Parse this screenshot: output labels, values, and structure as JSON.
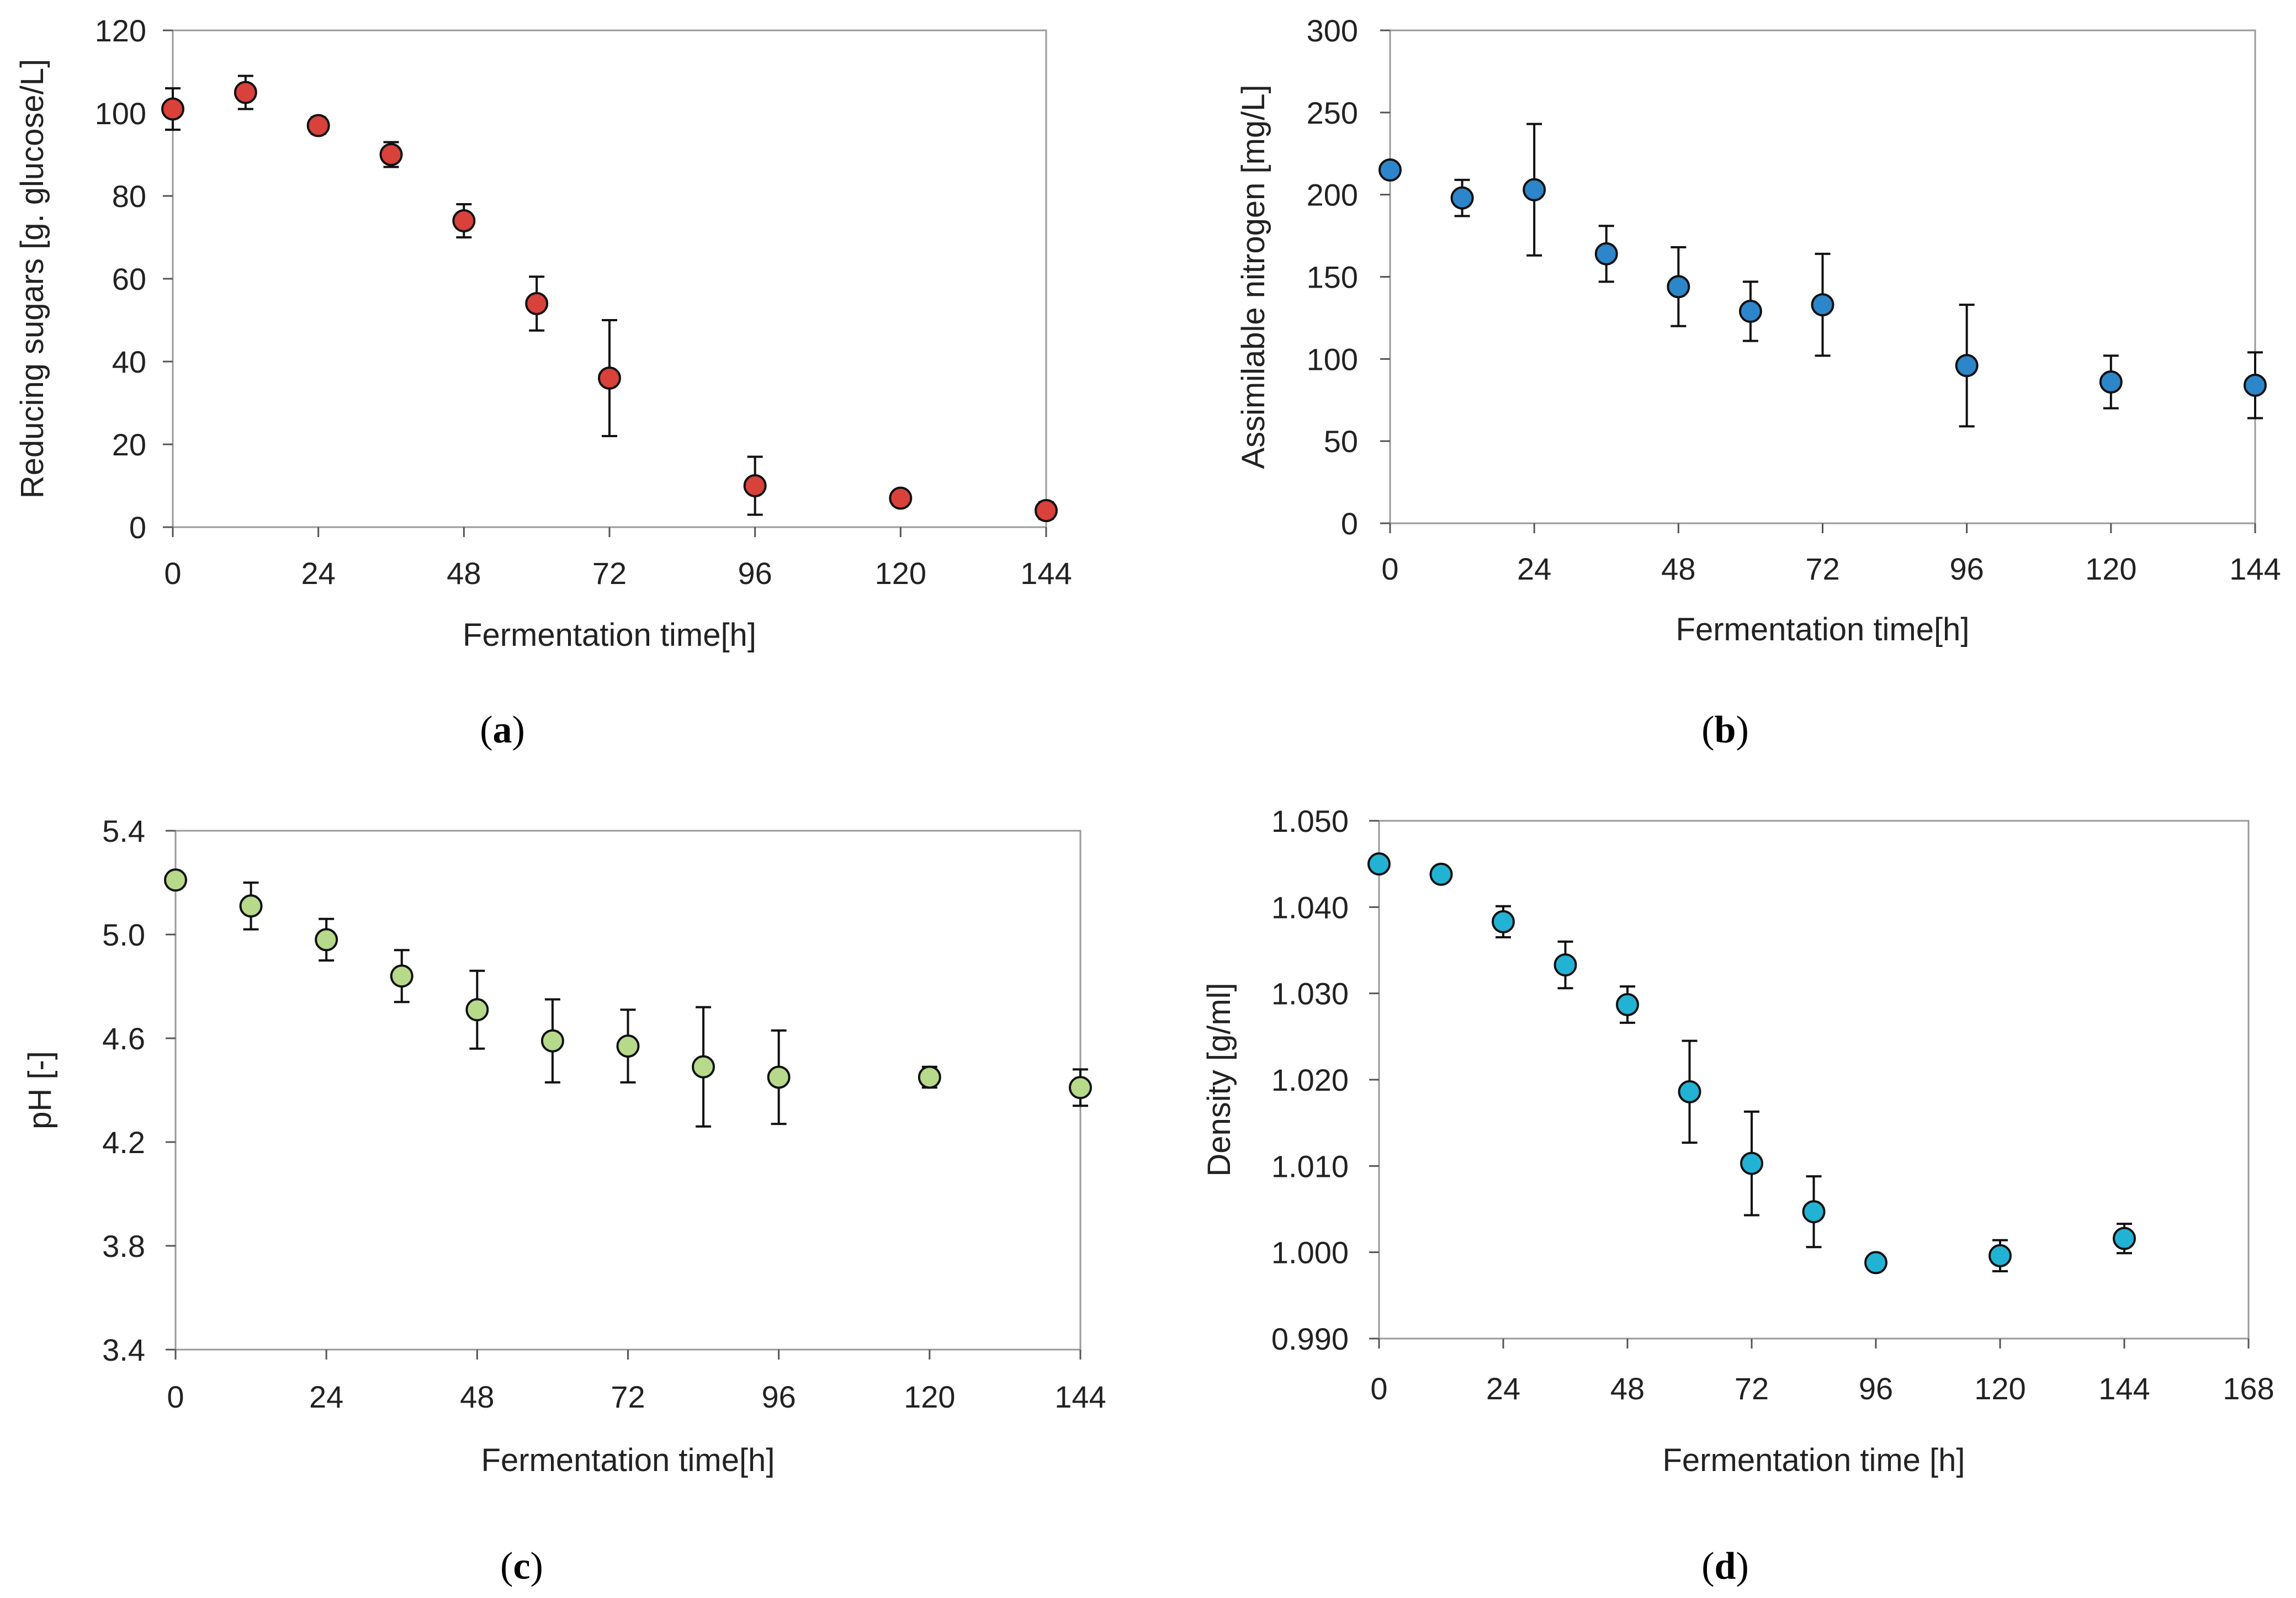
{
  "chart_data": [
    {
      "type": "scatter",
      "caption": "a",
      "xlabel": "Fermentation time[h]",
      "ylabel": "Reducing sugars [g. glucose/L]",
      "xlim": [
        0,
        144
      ],
      "ylim": [
        0,
        120
      ],
      "xticks": [
        "0",
        "24",
        "48",
        "72",
        "96",
        "120",
        "144"
      ],
      "yticks": [
        "0",
        "20",
        "40",
        "60",
        "80",
        "100",
        "120"
      ],
      "grid": false,
      "marker_color": "#d9413b",
      "series": [
        {
          "points": [
            {
              "x": 0,
              "y": 101,
              "err": 5
            },
            {
              "x": 12,
              "y": 105,
              "err": 4
            },
            {
              "x": 24,
              "y": 97,
              "err": 2
            },
            {
              "x": 36,
              "y": 90,
              "err": 3
            },
            {
              "x": 48,
              "y": 74,
              "err": 4
            },
            {
              "x": 60,
              "y": 54,
              "err": 6.5
            },
            {
              "x": 72,
              "y": 36,
              "err": 14
            },
            {
              "x": 96,
              "y": 10,
              "err": 7
            },
            {
              "x": 120,
              "y": 7,
              "err": 1.5
            },
            {
              "x": 144,
              "y": 4,
              "err": 2
            }
          ]
        }
      ]
    },
    {
      "type": "scatter",
      "caption": "b",
      "xlabel": "Fermentation time[h]",
      "ylabel": "Assimilable nitrogen [mg/L]",
      "xlim": [
        0,
        144
      ],
      "ylim": [
        0,
        300
      ],
      "xticks": [
        "0",
        "24",
        "48",
        "72",
        "96",
        "120",
        "144"
      ],
      "yticks": [
        "0",
        "50",
        "100",
        "150",
        "200",
        "250",
        "300"
      ],
      "grid": false,
      "marker_color": "#2c86c9",
      "series": [
        {
          "points": [
            {
              "x": 0,
              "y": 215,
              "err": 0
            },
            {
              "x": 12,
              "y": 198,
              "err": 11
            },
            {
              "x": 24,
              "y": 203,
              "err": 40
            },
            {
              "x": 36,
              "y": 164,
              "err": 17
            },
            {
              "x": 48,
              "y": 144,
              "err": 24
            },
            {
              "x": 60,
              "y": 129,
              "err": 18
            },
            {
              "x": 72,
              "y": 133,
              "err": 31
            },
            {
              "x": 96,
              "y": 96,
              "err": 37
            },
            {
              "x": 120,
              "y": 86,
              "err": 16
            },
            {
              "x": 144,
              "y": 84,
              "err": 20
            }
          ]
        }
      ]
    },
    {
      "type": "scatter",
      "caption": "c",
      "xlabel": "Fermentation time[h]",
      "ylabel": "pH [-]",
      "xlim": [
        0,
        144
      ],
      "ylim": [
        3.4,
        5.4
      ],
      "xticks": [
        "0",
        "24",
        "48",
        "72",
        "96",
        "120",
        "144"
      ],
      "yticks": [
        "3.4",
        "3.8",
        "4.2",
        "4.6",
        "5.0",
        "5.4"
      ],
      "grid": false,
      "marker_color": "#b6d98a",
      "series": [
        {
          "points": [
            {
              "x": 0,
              "y": 5.21,
              "err": 0
            },
            {
              "x": 12,
              "y": 5.11,
              "err": 0.09
            },
            {
              "x": 24,
              "y": 4.98,
              "err": 0.08
            },
            {
              "x": 36,
              "y": 4.84,
              "err": 0.1
            },
            {
              "x": 48,
              "y": 4.71,
              "err": 0.15
            },
            {
              "x": 60,
              "y": 4.59,
              "err": 0.16
            },
            {
              "x": 72,
              "y": 4.57,
              "err": 0.14
            },
            {
              "x": 84,
              "y": 4.49,
              "err": 0.23
            },
            {
              "x": 96,
              "y": 4.45,
              "err": 0.18
            },
            {
              "x": 120,
              "y": 4.45,
              "err": 0.04
            },
            {
              "x": 144,
              "y": 4.41,
              "err": 0.07
            }
          ]
        }
      ]
    },
    {
      "type": "scatter",
      "caption": "d",
      "xlabel": "Fermentation time [h]",
      "ylabel": "Density [g/ml]",
      "xlim": [
        0,
        168
      ],
      "ylim": [
        0.99,
        1.05
      ],
      "xticks": [
        "0",
        "24",
        "48",
        "72",
        "96",
        "120",
        "144",
        "168"
      ],
      "yticks": [
        "0.990",
        "1.000",
        "1.010",
        "1.020",
        "1.030",
        "1.040",
        "1.050"
      ],
      "grid": false,
      "marker_color": "#22b3d4",
      "series": [
        {
          "points": [
            {
              "x": 0,
              "y": 1.045,
              "err": 0.0005
            },
            {
              "x": 12,
              "y": 1.0438,
              "err": 0.0008
            },
            {
              "x": 24,
              "y": 1.0383,
              "err": 0.0018
            },
            {
              "x": 36,
              "y": 1.0333,
              "err": 0.0027
            },
            {
              "x": 48,
              "y": 1.0287,
              "err": 0.0021
            },
            {
              "x": 60,
              "y": 1.0186,
              "err": 0.0059
            },
            {
              "x": 72,
              "y": 1.0103,
              "err": 0.006
            },
            {
              "x": 84,
              "y": 1.0047,
              "err": 0.0041
            },
            {
              "x": 96,
              "y": 0.9988,
              "err": 0.0007
            },
            {
              "x": 120,
              "y": 0.9996,
              "err": 0.0018
            },
            {
              "x": 144,
              "y": 1.0016,
              "err": 0.0017
            }
          ]
        }
      ]
    }
  ]
}
